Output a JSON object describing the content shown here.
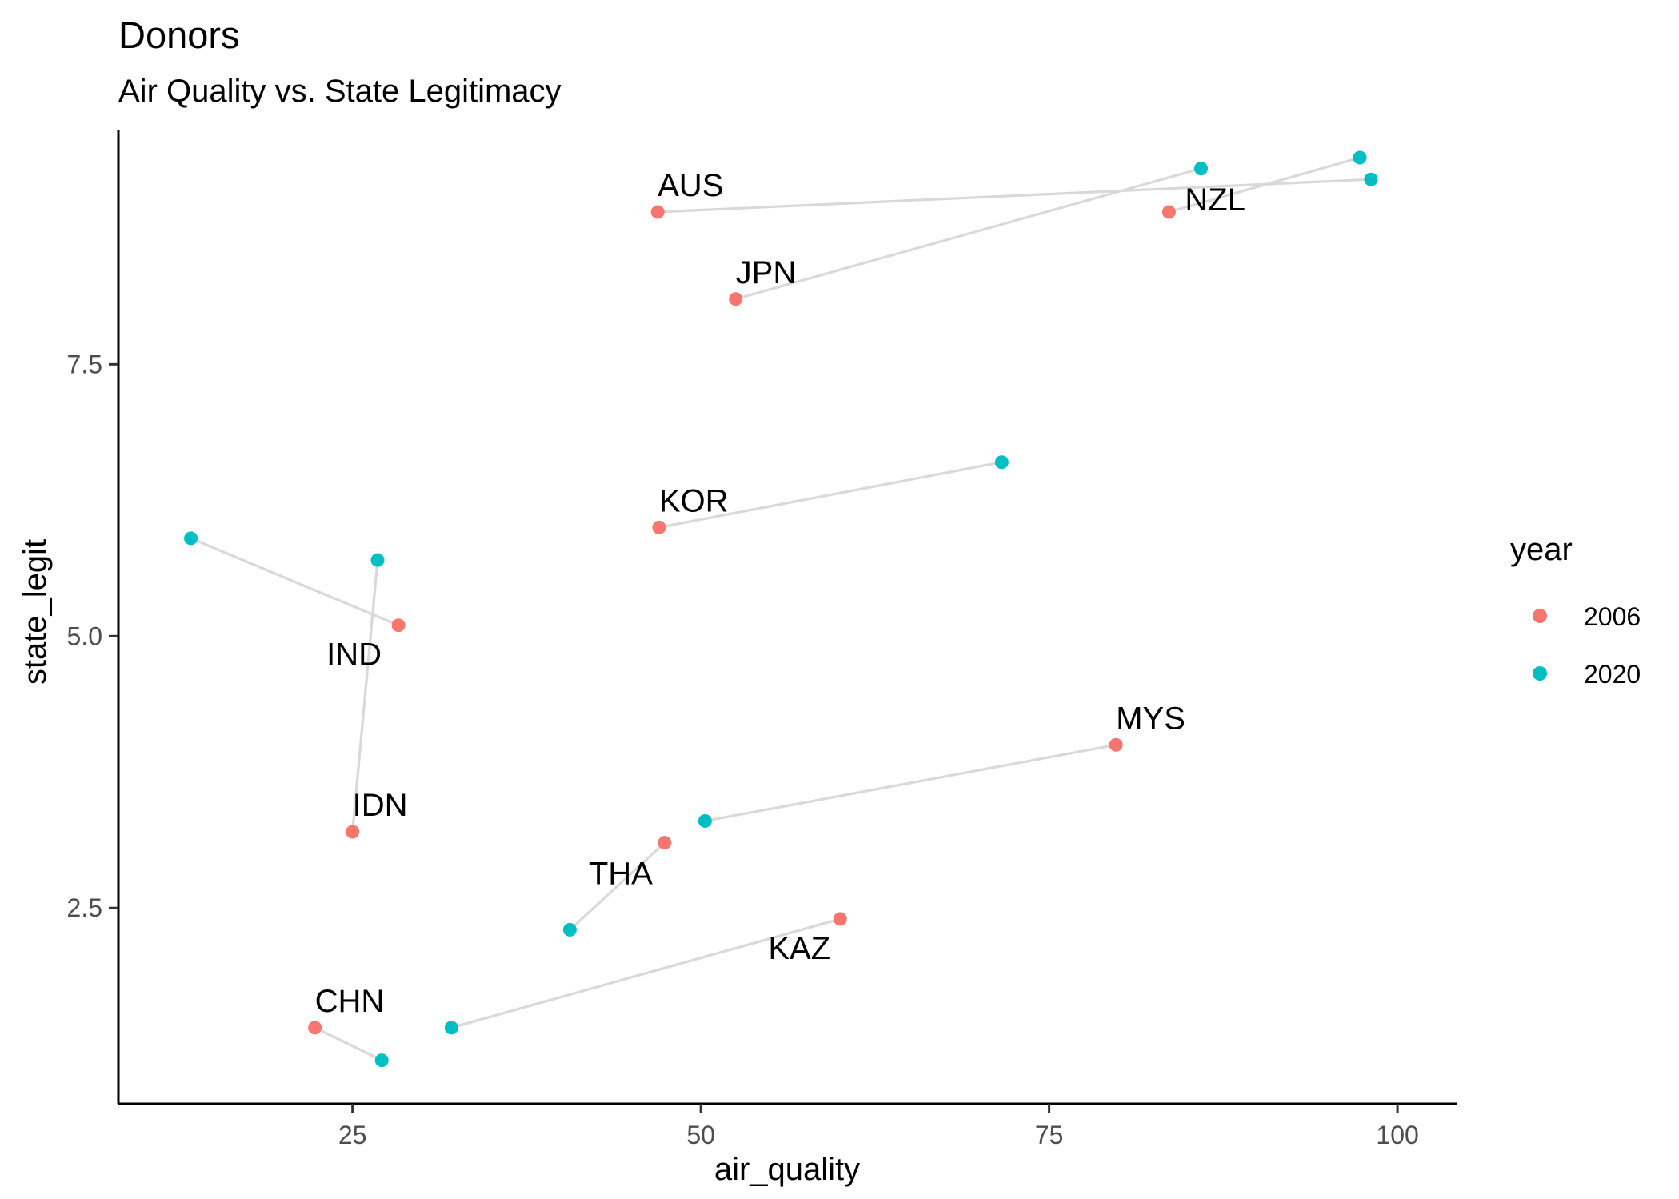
{
  "chart_data": {
    "type": "scatter",
    "title": "Donors",
    "subtitle": "Air Quality vs. State Legitimacy",
    "xlabel": "air_quality",
    "ylabel": "state_legit",
    "xlim": [
      8.2,
      104.3
    ],
    "ylim": [
      0.7,
      9.65
    ],
    "x_ticks": [
      25,
      50,
      75,
      100
    ],
    "x_tick_labels": [
      "25",
      "50",
      "75",
      "100"
    ],
    "y_ticks": [
      2.5,
      5.0,
      7.5
    ],
    "y_tick_labels": [
      "2.5",
      "5.0",
      "7.5"
    ],
    "grid": false,
    "legend": {
      "title": "year",
      "position": "right",
      "entries": [
        {
          "label": "2006",
          "color": "#F8766D"
        },
        {
          "label": "2020",
          "color": "#00BFC4"
        }
      ]
    },
    "connector_color": "#d9d9d9",
    "countries": [
      {
        "code": "AUS",
        "label_anchor": "above",
        "points": [
          {
            "year": "2006",
            "x": 46.9,
            "y": 8.9
          },
          {
            "year": "2020",
            "x": 98.1,
            "y": 9.2
          }
        ]
      },
      {
        "code": "NZL",
        "label_anchor": "right",
        "points": [
          {
            "year": "2006",
            "x": 83.6,
            "y": 8.9
          },
          {
            "year": "2020",
            "x": 97.3,
            "y": 9.4
          }
        ]
      },
      {
        "code": "JPN",
        "label_anchor": "above",
        "points": [
          {
            "year": "2006",
            "x": 52.5,
            "y": 8.1
          },
          {
            "year": "2020",
            "x": 85.9,
            "y": 9.3
          }
        ]
      },
      {
        "code": "KOR",
        "label_anchor": "above",
        "points": [
          {
            "year": "2006",
            "x": 47.0,
            "y": 6.0
          },
          {
            "year": "2020",
            "x": 71.6,
            "y": 6.6
          }
        ]
      },
      {
        "code": "IND",
        "label_anchor": "below-left",
        "points": [
          {
            "year": "2006",
            "x": 28.3,
            "y": 5.1
          },
          {
            "year": "2020",
            "x": 13.4,
            "y": 5.9
          }
        ]
      },
      {
        "code": "IDN",
        "label_anchor": "above",
        "points": [
          {
            "year": "2006",
            "x": 25.0,
            "y": 3.2
          },
          {
            "year": "2020",
            "x": 26.8,
            "y": 5.7
          }
        ]
      },
      {
        "code": "MYS",
        "label_anchor": "above",
        "points": [
          {
            "year": "2006",
            "x": 79.8,
            "y": 4.0
          },
          {
            "year": "2020",
            "x": 50.3,
            "y": 3.3
          }
        ]
      },
      {
        "code": "THA",
        "label_anchor": "below",
        "points": [
          {
            "year": "2006",
            "x": 47.4,
            "y": 3.1
          },
          {
            "year": "2020",
            "x": 40.6,
            "y": 2.3
          }
        ]
      },
      {
        "code": "KAZ",
        "label_anchor": "below-left",
        "points": [
          {
            "year": "2006",
            "x": 60.0,
            "y": 2.4
          },
          {
            "year": "2020",
            "x": 32.1,
            "y": 1.4
          }
        ]
      },
      {
        "code": "CHN",
        "label_anchor": "above",
        "points": [
          {
            "year": "2006",
            "x": 22.3,
            "y": 1.4
          },
          {
            "year": "2020",
            "x": 27.1,
            "y": 1.1
          }
        ]
      }
    ]
  }
}
